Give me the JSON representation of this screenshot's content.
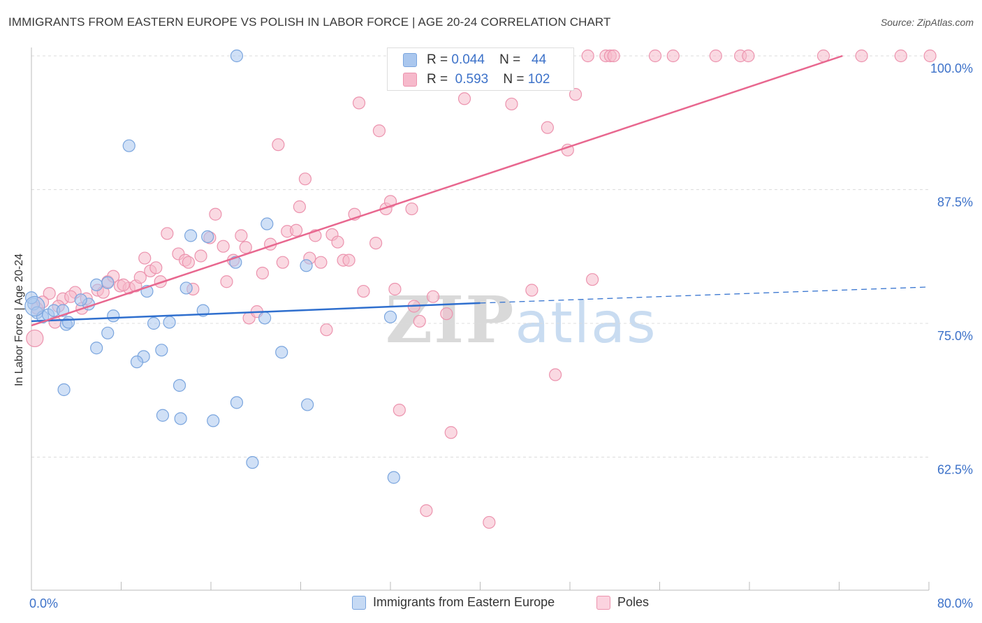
{
  "title": "IMMIGRANTS FROM EASTERN EUROPE VS POLISH IN LABOR FORCE | AGE 20-24 CORRELATION CHART",
  "source": "Source: ZipAtlas.com",
  "watermark": {
    "zip": "ZIP",
    "atlas": "atlas"
  },
  "stats": [
    {
      "r_label": "R =",
      "r_value": "0.044",
      "n_label": "N =",
      "n_value": "44"
    },
    {
      "r_label": "R =",
      "r_value": "0.593",
      "n_label": "N =",
      "n_value": "102"
    }
  ],
  "legend": {
    "series1": "Immigrants from Eastern Europe",
    "series2": "Poles"
  },
  "colors": {
    "blue_fill": "#aac7ee",
    "blue_stroke": "#7aa5de",
    "blue_line": "#2f6fce",
    "pink_fill": "#f6b9cb",
    "pink_stroke": "#ec93ae",
    "pink_line": "#e8678f",
    "axis_label": "#3d72c9",
    "grid": "#dcdcdc"
  },
  "chart_data": {
    "type": "scatter",
    "ylabel": "In Labor Force | Age 20-24",
    "xlim": [
      0,
      80
    ],
    "ylim": [
      50,
      100
    ],
    "x_tick_labels": [
      {
        "value": 0,
        "label": "0.0%"
      },
      {
        "value": 80,
        "label": "80.0%"
      }
    ],
    "y_tick_labels": [
      {
        "value": 62.5,
        "label": "62.5%"
      },
      {
        "value": 75,
        "label": "75.0%"
      },
      {
        "value": 87.5,
        "label": "87.5%"
      },
      {
        "value": 100,
        "label": "100.0%"
      }
    ],
    "grid": true,
    "legend_position": "bottom-center",
    "series": [
      {
        "name": "Immigrants from Eastern Europe",
        "trend": {
          "x": [
            0,
            40
          ],
          "y": [
            75.2,
            76.9
          ],
          "dashed_to": [
            80,
            78.4
          ]
        },
        "points": [
          [
            0.2,
            76.8
          ],
          [
            0.5,
            76.0
          ],
          [
            1.0,
            75.6
          ],
          [
            1.5,
            75.8
          ],
          [
            2.0,
            76.2
          ],
          [
            2.8,
            76.2
          ],
          [
            3.1,
            74.9
          ],
          [
            3.3,
            75.1
          ],
          [
            2.9,
            68.8
          ],
          [
            5.1,
            76.8
          ],
          [
            4.4,
            77.2
          ],
          [
            5.8,
            78.6
          ],
          [
            6.8,
            78.8
          ],
          [
            7.3,
            75.7
          ],
          [
            6.8,
            74.1
          ],
          [
            5.8,
            72.7
          ],
          [
            8.7,
            91.6
          ],
          [
            10.3,
            78.0
          ],
          [
            10.9,
            75.0
          ],
          [
            12.3,
            75.1
          ],
          [
            11.6,
            72.5
          ],
          [
            10.0,
            71.9
          ],
          [
            9.4,
            71.4
          ],
          [
            11.7,
            66.4
          ],
          [
            13.2,
            69.2
          ],
          [
            13.3,
            66.1
          ],
          [
            13.8,
            78.3
          ],
          [
            14.2,
            83.2
          ],
          [
            15.3,
            76.2
          ],
          [
            15.7,
            83.1
          ],
          [
            16.2,
            65.9
          ],
          [
            18.2,
            80.7
          ],
          [
            18.3,
            67.6
          ],
          [
            18.3,
            100.0
          ],
          [
            19.7,
            62.0
          ],
          [
            20.8,
            75.5
          ],
          [
            21.0,
            84.3
          ],
          [
            22.3,
            72.3
          ],
          [
            24.5,
            80.4
          ],
          [
            24.6,
            67.4
          ],
          [
            32.0,
            75.6
          ],
          [
            32.3,
            60.6
          ],
          [
            32.8,
            100.0
          ],
          [
            0.0,
            77.4
          ]
        ]
      },
      {
        "name": "Poles",
        "trend": {
          "x": [
            0,
            72.3
          ],
          "y": [
            74.8,
            100.0
          ]
        },
        "points": [
          [
            0.3,
            73.6
          ],
          [
            0.5,
            76.4
          ],
          [
            1.6,
            77.8
          ],
          [
            2.1,
            75.1
          ],
          [
            2.8,
            77.3
          ],
          [
            3.9,
            77.9
          ],
          [
            4.5,
            76.4
          ],
          [
            4.9,
            77.3
          ],
          [
            5.9,
            78.1
          ],
          [
            6.8,
            78.9
          ],
          [
            7.3,
            79.4
          ],
          [
            7.9,
            78.5
          ],
          [
            8.7,
            78.3
          ],
          [
            9.3,
            78.5
          ],
          [
            9.7,
            79.3
          ],
          [
            10.1,
            81.1
          ],
          [
            10.6,
            79.9
          ],
          [
            11.1,
            80.2
          ],
          [
            11.5,
            78.9
          ],
          [
            12.1,
            83.4
          ],
          [
            13.1,
            81.5
          ],
          [
            13.7,
            80.9
          ],
          [
            14.4,
            78.2
          ],
          [
            14.0,
            80.7
          ],
          [
            15.1,
            81.3
          ],
          [
            15.9,
            83.0
          ],
          [
            16.4,
            85.2
          ],
          [
            17.4,
            78.9
          ],
          [
            18.0,
            80.9
          ],
          [
            18.7,
            83.2
          ],
          [
            19.1,
            82.1
          ],
          [
            19.4,
            75.5
          ],
          [
            20.1,
            76.1
          ],
          [
            20.6,
            79.7
          ],
          [
            21.3,
            82.4
          ],
          [
            22.0,
            91.7
          ],
          [
            22.4,
            80.7
          ],
          [
            22.8,
            83.6
          ],
          [
            23.6,
            83.7
          ],
          [
            23.9,
            85.9
          ],
          [
            24.4,
            88.5
          ],
          [
            24.8,
            81.1
          ],
          [
            25.3,
            83.2
          ],
          [
            25.8,
            80.7
          ],
          [
            26.3,
            74.4
          ],
          [
            26.8,
            83.3
          ],
          [
            27.3,
            82.6
          ],
          [
            27.8,
            80.9
          ],
          [
            28.3,
            80.9
          ],
          [
            28.8,
            85.2
          ],
          [
            29.2,
            95.6
          ],
          [
            29.6,
            78.0
          ],
          [
            30.7,
            82.5
          ],
          [
            31.0,
            93.0
          ],
          [
            31.6,
            85.7
          ],
          [
            32.0,
            86.4
          ],
          [
            32.4,
            78.2
          ],
          [
            32.8,
            100.0
          ],
          [
            32.8,
            66.9
          ],
          [
            33.4,
            100.0
          ],
          [
            33.9,
            85.7
          ],
          [
            34.1,
            76.6
          ],
          [
            34.6,
            75.2
          ],
          [
            35.2,
            57.5
          ],
          [
            35.8,
            77.5
          ],
          [
            36.2,
            100.0
          ],
          [
            37.0,
            75.9
          ],
          [
            37.4,
            64.8
          ],
          [
            38.6,
            96.0
          ],
          [
            39.4,
            100.0
          ],
          [
            40.2,
            100.0
          ],
          [
            40.8,
            56.4
          ],
          [
            41.2,
            100.0
          ],
          [
            42.3,
            100.0
          ],
          [
            42.8,
            95.5
          ],
          [
            44.6,
            78.1
          ],
          [
            45.2,
            100.0
          ],
          [
            46.0,
            93.3
          ],
          [
            46.7,
            70.2
          ],
          [
            47.1,
            100.0
          ],
          [
            47.8,
            91.2
          ],
          [
            48.5,
            96.4
          ],
          [
            49.6,
            100.0
          ],
          [
            50.0,
            79.1
          ],
          [
            51.2,
            100.0
          ],
          [
            51.6,
            100.0
          ],
          [
            51.9,
            100.0
          ],
          [
            55.6,
            100.0
          ],
          [
            57.2,
            100.0
          ],
          [
            61.0,
            100.0
          ],
          [
            63.2,
            100.0
          ],
          [
            63.9,
            100.0
          ],
          [
            70.6,
            100.0
          ],
          [
            74.0,
            100.0
          ],
          [
            77.5,
            100.0
          ],
          [
            80.1,
            100.0
          ],
          [
            1.0,
            77.0
          ],
          [
            2.4,
            76.6
          ],
          [
            3.5,
            77.5
          ],
          [
            6.4,
            77.9
          ],
          [
            8.2,
            78.6
          ],
          [
            17.1,
            82.2
          ]
        ]
      }
    ]
  }
}
